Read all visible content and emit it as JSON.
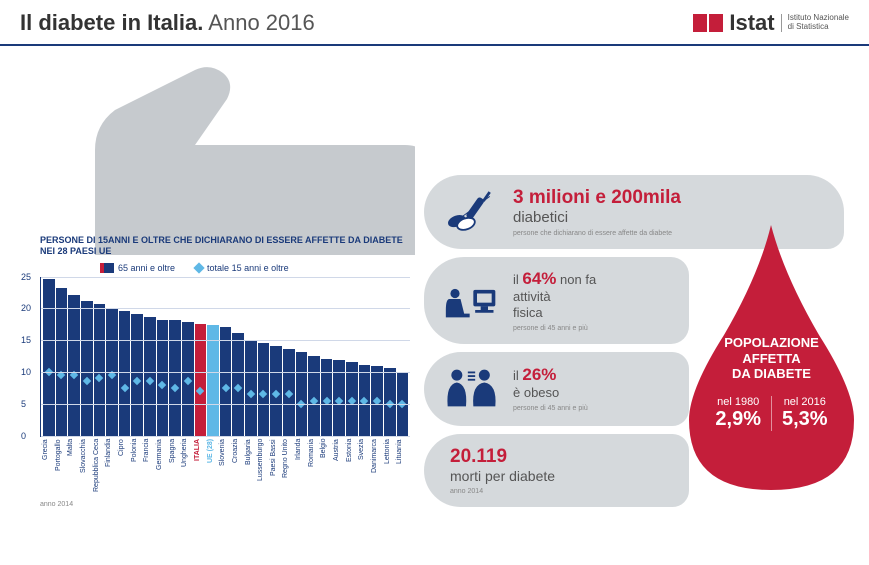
{
  "header": {
    "title_bold": "Il diabete in Italia.",
    "title_light": "Anno 2016",
    "logo_text": "Istat",
    "logo_sub1": "Istituto Nazionale",
    "logo_sub2": "di Statistica",
    "logo_color": "#c41e3a"
  },
  "chart": {
    "title": "PERSONE DI 15ANNI E OLTRE CHE DICHIARANO DI ESSERE AFFETTE DA DIABETE NEI 28 PAESI UE",
    "legend_65": "65 anni e oltre",
    "legend_tot": "totale 15 anni e oltre",
    "ymax": 25,
    "ytick_step": 5,
    "bar_color": "#1a3a7a",
    "highlight_color": "#c41e3a",
    "eu_color": "#5fb8e6",
    "diamond_color": "#5fb8e6",
    "grid_color": "#d0d8e8",
    "anno_note": "anno 2014",
    "countries": [
      {
        "name": "Grecia",
        "bar": 24.5,
        "tot": 9.5,
        "hl": false
      },
      {
        "name": "Portogallo",
        "bar": 23,
        "tot": 9,
        "hl": false
      },
      {
        "name": "Malta",
        "bar": 22,
        "tot": 9,
        "hl": false
      },
      {
        "name": "Slovacchia",
        "bar": 21,
        "tot": 8,
        "hl": false
      },
      {
        "name": "Repubblica Ceca",
        "bar": 20.5,
        "tot": 8.5,
        "hl": false
      },
      {
        "name": "Finlandia",
        "bar": 20,
        "tot": 9,
        "hl": false
      },
      {
        "name": "Cipro",
        "bar": 19.5,
        "tot": 7,
        "hl": false
      },
      {
        "name": "Polonia",
        "bar": 19,
        "tot": 8,
        "hl": false
      },
      {
        "name": "Francia",
        "bar": 18.5,
        "tot": 8,
        "hl": false
      },
      {
        "name": "Germania",
        "bar": 18,
        "tot": 7.5,
        "hl": false
      },
      {
        "name": "Spagna",
        "bar": 18,
        "tot": 7,
        "hl": false
      },
      {
        "name": "Ungheria",
        "bar": 17.8,
        "tot": 8,
        "hl": false
      },
      {
        "name": "ITALIA",
        "bar": 17.5,
        "tot": 6.5,
        "hl": true
      },
      {
        "name": "UE (28)",
        "bar": 17.3,
        "tot": 7,
        "eu": true
      },
      {
        "name": "Slovenia",
        "bar": 17,
        "tot": 7,
        "hl": false
      },
      {
        "name": "Croazia",
        "bar": 16,
        "tot": 7,
        "hl": false
      },
      {
        "name": "Bulgaria",
        "bar": 15,
        "tot": 6,
        "hl": false
      },
      {
        "name": "Lussemburgo",
        "bar": 14.5,
        "tot": 6,
        "hl": false
      },
      {
        "name": "Paesi Bassi",
        "bar": 14,
        "tot": 6,
        "hl": false
      },
      {
        "name": "Regno Unito",
        "bar": 13.5,
        "tot": 6,
        "hl": false
      },
      {
        "name": "Irlanda",
        "bar": 13,
        "tot": 4.5,
        "hl": false
      },
      {
        "name": "Romania",
        "bar": 12.5,
        "tot": 5,
        "hl": false
      },
      {
        "name": "Belgio",
        "bar": 12,
        "tot": 5,
        "hl": false
      },
      {
        "name": "Austria",
        "bar": 11.8,
        "tot": 5,
        "hl": false
      },
      {
        "name": "Estonia",
        "bar": 11.5,
        "tot": 5,
        "hl": false
      },
      {
        "name": "Svezia",
        "bar": 11,
        "tot": 5,
        "hl": false
      },
      {
        "name": "Danimarca",
        "bar": 10.8,
        "tot": 5,
        "hl": false
      },
      {
        "name": "Lettonia",
        "bar": 10.5,
        "tot": 4.5,
        "hl": false
      },
      {
        "name": "Lituania",
        "bar": 10,
        "tot": 4.5,
        "hl": false
      }
    ]
  },
  "cards": {
    "c1": {
      "headline": "3 milioni e 200mila",
      "sub": "diabetici",
      "note": "persone che dichiarano di essere affette da diabete"
    },
    "c2": {
      "pre": "il ",
      "pct": "64%",
      "line1": " non fa",
      "line2": "attività",
      "line3": "fisica",
      "note": "persone di 45 anni e più"
    },
    "c3": {
      "pre": "il ",
      "pct": "26%",
      "line1": "è obeso",
      "note": "persone di 45 anni e più"
    },
    "c4": {
      "num": "20.119",
      "sub": "morti per diabete",
      "note": "anno 2014"
    }
  },
  "drop": {
    "title1": "POPOLAZIONE",
    "title2": "AFFETTA",
    "title3": "DA DIABETE",
    "y1_label": "nel 1980",
    "y1_val": "2,9%",
    "y2_label": "nel 2016",
    "y2_val": "5,3%",
    "fill": "#c41e3a"
  },
  "colors": {
    "hand": "#c6cace",
    "card": "#d5d9dc",
    "icon": "#1a3a7a"
  }
}
